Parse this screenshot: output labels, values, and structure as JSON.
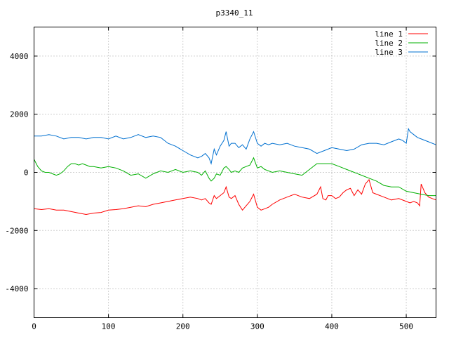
{
  "chart_data": {
    "type": "line",
    "title": "p3340_11",
    "xlabel": "",
    "ylabel": "",
    "xlim": [
      0,
      540
    ],
    "ylim": [
      -5000,
      5000
    ],
    "x_ticks": [
      0,
      100,
      200,
      300,
      400,
      500
    ],
    "y_ticks": [
      -4000,
      -2000,
      0,
      2000,
      4000
    ],
    "grid": true,
    "legend_position": "top-right",
    "series": [
      {
        "name": "line 1",
        "color": "#ff0000",
        "x": [
          0,
          10,
          20,
          30,
          40,
          50,
          60,
          70,
          80,
          90,
          100,
          110,
          120,
          130,
          140,
          150,
          160,
          170,
          180,
          190,
          200,
          210,
          220,
          225,
          230,
          235,
          238,
          242,
          245,
          250,
          255,
          258,
          262,
          265,
          270,
          275,
          280,
          285,
          290,
          295,
          300,
          305,
          310,
          315,
          320,
          330,
          340,
          350,
          360,
          370,
          380,
          385,
          388,
          392,
          395,
          400,
          405,
          410,
          415,
          420,
          425,
          430,
          435,
          440,
          445,
          450,
          455,
          460,
          470,
          480,
          490,
          500,
          505,
          510,
          515,
          518,
          520,
          525,
          530,
          535,
          540
        ],
        "y": [
          -1250,
          -1280,
          -1250,
          -1300,
          -1300,
          -1350,
          -1400,
          -1450,
          -1400,
          -1380,
          -1300,
          -1280,
          -1250,
          -1200,
          -1150,
          -1180,
          -1100,
          -1050,
          -1000,
          -950,
          -900,
          -850,
          -900,
          -950,
          -900,
          -1050,
          -1100,
          -800,
          -900,
          -800,
          -700,
          -500,
          -850,
          -900,
          -800,
          -1100,
          -1300,
          -1150,
          -1000,
          -750,
          -1200,
          -1300,
          -1250,
          -1200,
          -1100,
          -950,
          -850,
          -750,
          -850,
          -900,
          -750,
          -500,
          -900,
          -950,
          -800,
          -800,
          -900,
          -850,
          -700,
          -600,
          -550,
          -800,
          -600,
          -750,
          -400,
          -250,
          -700,
          -750,
          -850,
          -950,
          -900,
          -1000,
          -1050,
          -1000,
          -1050,
          -1150,
          -400,
          -700,
          -850,
          -900,
          -950
        ]
      },
      {
        "name": "line 2",
        "color": "#00b000",
        "x": [
          0,
          5,
          10,
          15,
          20,
          25,
          30,
          35,
          40,
          45,
          50,
          55,
          60,
          65,
          70,
          75,
          80,
          90,
          100,
          110,
          120,
          130,
          140,
          150,
          160,
          170,
          180,
          190,
          200,
          210,
          220,
          225,
          230,
          235,
          238,
          242,
          245,
          250,
          255,
          258,
          262,
          265,
          270,
          275,
          280,
          285,
          290,
          295,
          300,
          305,
          310,
          315,
          320,
          330,
          340,
          350,
          360,
          370,
          380,
          390,
          400,
          410,
          420,
          430,
          440,
          450,
          460,
          470,
          480,
          490,
          500,
          510,
          520,
          530,
          540
        ],
        "y": [
          450,
          200,
          50,
          0,
          0,
          -50,
          -100,
          -50,
          50,
          200,
          300,
          300,
          250,
          300,
          250,
          200,
          200,
          150,
          200,
          150,
          50,
          -100,
          -50,
          -200,
          -50,
          50,
          0,
          100,
          0,
          50,
          0,
          -100,
          50,
          -200,
          -300,
          -200,
          -50,
          -100,
          150,
          200,
          100,
          0,
          50,
          0,
          150,
          200,
          250,
          500,
          150,
          200,
          100,
          50,
          0,
          50,
          0,
          -50,
          -100,
          100,
          300,
          300,
          300,
          200,
          100,
          0,
          -100,
          -200,
          -300,
          -450,
          -500,
          -500,
          -650,
          -700,
          -750,
          -800,
          -800
        ]
      },
      {
        "name": "line 3",
        "color": "#0070d0",
        "x": [
          0,
          10,
          20,
          30,
          40,
          50,
          60,
          70,
          80,
          90,
          100,
          110,
          120,
          130,
          140,
          150,
          160,
          170,
          180,
          190,
          200,
          210,
          220,
          225,
          230,
          235,
          238,
          242,
          245,
          250,
          255,
          258,
          262,
          265,
          270,
          275,
          280,
          285,
          290,
          295,
          300,
          305,
          310,
          315,
          320,
          330,
          340,
          350,
          360,
          370,
          380,
          390,
          400,
          410,
          420,
          430,
          440,
          450,
          460,
          470,
          480,
          490,
          495,
          500,
          503,
          505,
          510,
          515,
          520,
          530,
          540
        ],
        "y": [
          1250,
          1250,
          1300,
          1250,
          1150,
          1200,
          1200,
          1150,
          1200,
          1200,
          1150,
          1250,
          1150,
          1200,
          1300,
          1200,
          1250,
          1200,
          1000,
          900,
          750,
          600,
          500,
          550,
          650,
          500,
          300,
          800,
          600,
          900,
          1100,
          1400,
          900,
          1000,
          1000,
          850,
          950,
          800,
          1150,
          1400,
          1000,
          900,
          1000,
          950,
          1000,
          950,
          1000,
          900,
          850,
          800,
          650,
          750,
          850,
          800,
          750,
          800,
          950,
          1000,
          1000,
          950,
          1050,
          1150,
          1100,
          1000,
          1500,
          1400,
          1300,
          1200,
          1150,
          1050,
          950
        ]
      }
    ]
  }
}
